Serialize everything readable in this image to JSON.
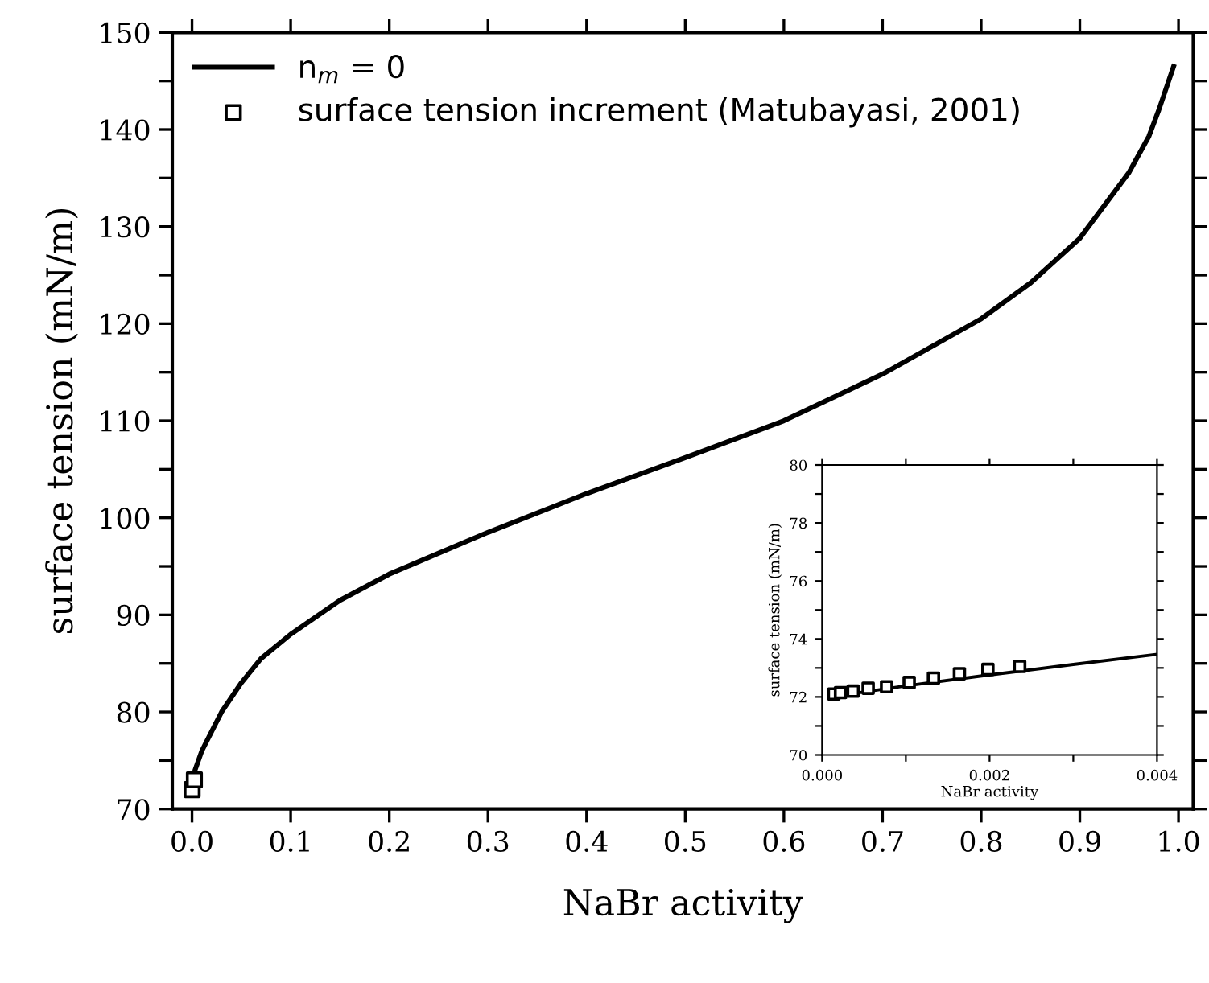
{
  "chart_data": [
    {
      "type": "line",
      "xlabel": "NaBr activity",
      "ylabel": "surface tension (mN/m)",
      "legend": "top left",
      "grid": false,
      "xlim": [
        -0.02,
        1.015
      ],
      "ylim": [
        70,
        150
      ],
      "xticks": [
        {
          "value": 0,
          "label": "0.0"
        },
        {
          "value": 0.1,
          "label": "0.1"
        },
        {
          "value": 0.2,
          "label": "0.2"
        },
        {
          "value": 0.3,
          "label": "0.3"
        },
        {
          "value": 0.4,
          "label": "0.4"
        },
        {
          "value": 0.5,
          "label": "0.5"
        },
        {
          "value": 0.6,
          "label": "0.6"
        },
        {
          "value": 0.7,
          "label": "0.7"
        },
        {
          "value": 0.8,
          "label": "0.8"
        },
        {
          "value": 0.9,
          "label": "0.9"
        },
        {
          "value": 1.0,
          "label": "1.0"
        }
      ],
      "yticks": [
        70,
        {
          "value": 75,
          "label": null
        },
        80,
        {
          "value": 85,
          "label": null
        },
        90,
        {
          "value": 95,
          "label": null
        },
        100,
        {
          "value": 105,
          "label": null
        },
        110,
        {
          "value": 115,
          "label": null
        },
        120,
        {
          "value": 125,
          "label": null
        },
        130,
        {
          "value": 135,
          "label": null
        },
        140,
        {
          "value": 145,
          "label": null
        },
        150
      ],
      "series": [
        {
          "name": "n$_{m}$ = 0",
          "color": "#000000",
          "line_style": "solid",
          "marker": "none",
          "x": [
            0.0002,
            0.003,
            0.01,
            0.02,
            0.03,
            0.05,
            0.07,
            0.1,
            0.15,
            0.2,
            0.3,
            0.4,
            0.5,
            0.6,
            0.7,
            0.8,
            0.85,
            0.9,
            0.95,
            0.97,
            0.98,
            0.99,
            0.995
          ],
          "values": [
            72,
            74,
            76,
            78,
            80,
            83,
            85.5,
            88,
            91.5,
            94.2,
            98.5,
            102.5,
            106.2,
            110,
            114.8,
            120.5,
            124.2,
            128.8,
            135.6,
            139.3,
            142,
            145,
            146.5
          ]
        },
        {
          "name": "surface tension increment (Matubayasi, 2001)",
          "type": "scatter",
          "color": "#000000",
          "marker": "square",
          "x": [
            0.0001,
            0.0024
          ],
          "values": [
            72,
            73
          ]
        }
      ]
    },
    {
      "type": "line",
      "xlabel": "NaBr activity",
      "ylabel": "surface tension (mN/m)",
      "grid": false,
      "xlim": [
        0,
        0.004
      ],
      "ylim": [
        70,
        80
      ],
      "xticks": [
        {
          "value": 0,
          "label": "0.000"
        },
        {
          "value": 0.001,
          "label": null
        },
        {
          "value": 0.002,
          "label": "0.002"
        },
        {
          "value": 0.003,
          "label": null
        },
        {
          "value": 0.004,
          "label": "0.004"
        }
      ],
      "yticks": [
        70,
        {
          "value": 71,
          "label": null
        },
        72,
        {
          "value": 73,
          "label": null
        },
        74,
        {
          "value": 75,
          "label": null
        },
        76,
        {
          "value": 77,
          "label": null
        },
        78,
        {
          "value": 79,
          "label": null
        },
        80
      ],
      "series": [
        {
          "color": "#000000",
          "line_style": "solid",
          "marker": "none",
          "x": [
            0.0001,
            0.001,
            0.002,
            0.003,
            0.004
          ],
          "values": [
            72.0,
            72.38,
            72.76,
            73.12,
            73.47
          ]
        },
        {
          "type": "scatter",
          "color": "#000000",
          "marker": "square",
          "x": [
            0.00014,
            0.00022,
            0.00037,
            0.00055,
            0.00077,
            0.00104,
            0.00133,
            0.00164,
            0.00198,
            0.00236
          ],
          "values": [
            72.1,
            72.15,
            72.2,
            72.3,
            72.35,
            72.5,
            72.65,
            72.8,
            72.95,
            73.05
          ]
        }
      ]
    }
  ]
}
